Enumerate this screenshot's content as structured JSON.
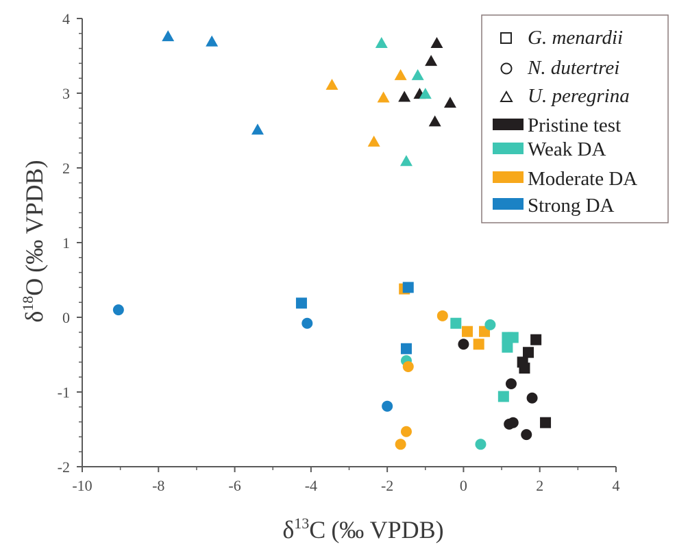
{
  "chart_data": {
    "type": "scatter",
    "xlabel": "δ13C (‰ VPDB)",
    "ylabel": "δ18O (‰ VPDB)",
    "xlabel_parts": {
      "delta": "δ",
      "sup": "13",
      "element": "C",
      "unit": "(‰ VPDB)"
    },
    "ylabel_parts": {
      "delta": "δ",
      "sup": "18",
      "element": "O",
      "unit": "(‰ VPDB)"
    },
    "xlim": [
      -10,
      4
    ],
    "ylim": [
      -2,
      4
    ],
    "x_ticks": [
      -10,
      -8,
      -6,
      -4,
      -2,
      0,
      2,
      4
    ],
    "y_ticks": [
      -2,
      -1,
      0,
      1,
      2,
      3,
      4
    ],
    "x_tick_labels": [
      "-10",
      "-8",
      "-6",
      "-4",
      "-2",
      "0",
      "2",
      "4"
    ],
    "y_tick_labels": [
      "-2",
      "-1",
      "0",
      "1",
      "2",
      "3",
      "4"
    ],
    "colors": {
      "Pristine test": "#231f20",
      "Weak DA": "#3ec6b3",
      "Moderate DA": "#f7a81b",
      "Strong DA": "#1b82c5"
    },
    "legend": {
      "position": "top-right",
      "shapes": [
        {
          "marker": "square",
          "label": "G. menardii"
        },
        {
          "marker": "circle",
          "label": "N. dutertrei"
        },
        {
          "marker": "triangle",
          "label": "U. peregrina"
        }
      ],
      "categories": [
        "Pristine test",
        "Weak DA",
        "Moderate DA",
        "Strong DA"
      ]
    },
    "series": [
      {
        "name": "G. menardii - Pristine test",
        "marker": "square",
        "category": "Pristine test",
        "points": [
          [
            1.9,
            -0.3
          ],
          [
            1.7,
            -0.47
          ],
          [
            1.55,
            -0.6
          ],
          [
            1.6,
            -0.68
          ],
          [
            2.15,
            -1.41
          ]
        ]
      },
      {
        "name": "G. menardii - Weak DA",
        "marker": "square",
        "category": "Weak DA",
        "points": [
          [
            -0.2,
            -0.08
          ],
          [
            1.15,
            -0.27
          ],
          [
            1.3,
            -0.27
          ],
          [
            1.15,
            -0.4
          ],
          [
            1.05,
            -1.06
          ]
        ]
      },
      {
        "name": "G. menardii - Moderate DA",
        "marker": "square",
        "category": "Moderate DA",
        "points": [
          [
            -1.55,
            0.38
          ],
          [
            0.1,
            -0.19
          ],
          [
            0.55,
            -0.19
          ],
          [
            0.4,
            -0.36
          ]
        ]
      },
      {
        "name": "G. menardii - Strong DA",
        "marker": "square",
        "category": "Strong DA",
        "points": [
          [
            -1.45,
            0.4
          ],
          [
            -4.25,
            0.19
          ],
          [
            -1.5,
            -0.42
          ]
        ]
      },
      {
        "name": "N. dutertrei - Pristine test",
        "marker": "circle",
        "category": "Pristine test",
        "points": [
          [
            0,
            -0.36
          ],
          [
            1.25,
            -0.89
          ],
          [
            1.8,
            -1.08
          ],
          [
            1.3,
            -1.41
          ],
          [
            1.2,
            -1.43
          ],
          [
            1.65,
            -1.57
          ]
        ]
      },
      {
        "name": "N. dutertrei - Weak DA",
        "marker": "circle",
        "category": "Weak DA",
        "points": [
          [
            0.7,
            -0.1
          ],
          [
            -1.5,
            -0.58
          ],
          [
            0.45,
            -1.7
          ]
        ]
      },
      {
        "name": "N. dutertrei - Moderate DA",
        "marker": "circle",
        "category": "Moderate DA",
        "points": [
          [
            -0.55,
            0.02
          ],
          [
            -1.45,
            -0.66
          ],
          [
            -1.5,
            -1.53
          ],
          [
            -1.65,
            -1.7
          ]
        ]
      },
      {
        "name": "N. dutertrei - Strong DA",
        "marker": "circle",
        "category": "Strong DA",
        "points": [
          [
            -9.05,
            0.1
          ],
          [
            -4.1,
            -0.08
          ],
          [
            -2,
            -1.19
          ]
        ]
      },
      {
        "name": "U. peregrina - Pristine test",
        "marker": "triangle",
        "category": "Pristine test",
        "points": [
          [
            -0.7,
            3.67
          ],
          [
            -0.85,
            3.43
          ],
          [
            -1.55,
            2.95
          ],
          [
            -1.15,
            2.99
          ],
          [
            -0.35,
            2.87
          ],
          [
            -0.75,
            2.62
          ]
        ]
      },
      {
        "name": "U. peregrina - Weak DA",
        "marker": "triangle",
        "category": "Weak DA",
        "points": [
          [
            -2.15,
            3.67
          ],
          [
            -1.2,
            3.24
          ],
          [
            -1.0,
            2.99
          ],
          [
            -1.5,
            2.09
          ]
        ]
      },
      {
        "name": "U. peregrina - Moderate DA",
        "marker": "triangle",
        "category": "Moderate DA",
        "points": [
          [
            -3.45,
            3.11
          ],
          [
            -1.65,
            3.24
          ],
          [
            -2.1,
            2.94
          ],
          [
            -2.35,
            2.35
          ]
        ]
      },
      {
        "name": "U. peregrina - Strong DA",
        "marker": "triangle",
        "category": "Strong DA",
        "points": [
          [
            -7.75,
            3.76
          ],
          [
            -6.6,
            3.69
          ],
          [
            -5.4,
            2.51
          ]
        ]
      }
    ]
  }
}
